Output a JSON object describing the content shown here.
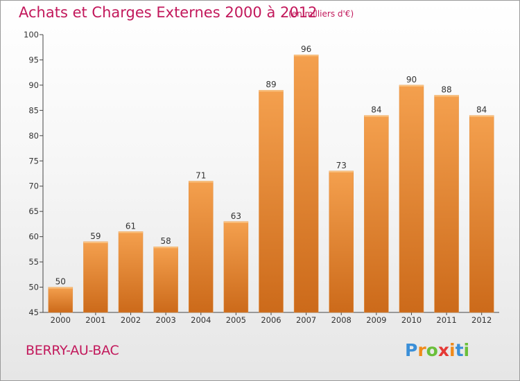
{
  "title": "Achats et Charges Externes 2000 à 2012",
  "subtitle": "(en milliers d'€)",
  "city": "BERRY-AU-BAC",
  "logo": {
    "letters": [
      "P",
      "r",
      "o",
      "x",
      "i",
      "t",
      "i"
    ],
    "colors": [
      "#3a8fd8",
      "#f08a1a",
      "#6abf3a",
      "#e53935",
      "#f08a1a",
      "#3a8fd8",
      "#6abf3a"
    ]
  },
  "colors": {
    "accent": "#c2185b",
    "bar_top": "#f4a04e",
    "bar_bottom": "#cc6a1a"
  },
  "chart_data": {
    "type": "bar",
    "categories": [
      "2000",
      "2001",
      "2002",
      "2003",
      "2004",
      "2005",
      "2006",
      "2007",
      "2008",
      "2009",
      "2010",
      "2011",
      "2012"
    ],
    "values": [
      50,
      59,
      61,
      58,
      71,
      63,
      89,
      96,
      73,
      84,
      90,
      88,
      84
    ],
    "ylim": [
      45,
      100
    ],
    "yticks": [
      45,
      50,
      55,
      60,
      65,
      70,
      75,
      80,
      85,
      90,
      95,
      100
    ],
    "grid": false,
    "legend": "none"
  }
}
